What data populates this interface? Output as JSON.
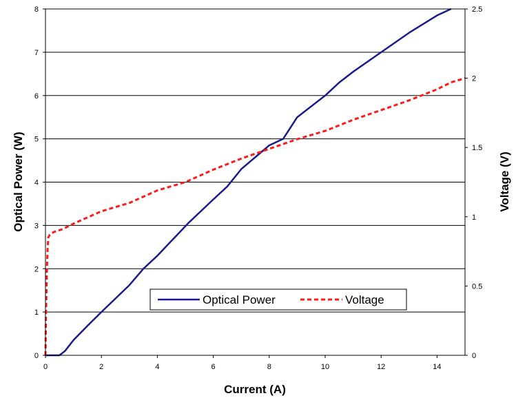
{
  "chart_data": {
    "type": "line",
    "title": "",
    "xlabel": "Current (A)",
    "ylabel": "Optical Power (W)",
    "y2label": "Voltage (V)",
    "xlim": [
      0,
      15
    ],
    "ylim": [
      0,
      8
    ],
    "y2lim": [
      0,
      2.5
    ],
    "x_ticks": [
      "0",
      "2",
      "4",
      "6",
      "8",
      "10",
      "12",
      "14"
    ],
    "y_ticks": [
      "0",
      "1",
      "2",
      "3",
      "4",
      "5",
      "6",
      "7",
      "8"
    ],
    "y2_ticks": [
      "0",
      "0.5",
      "1",
      "1.5",
      "2",
      "2.5"
    ],
    "grid": "horizontal",
    "legend": {
      "position": "lower-right",
      "entries": [
        "Optical Power",
        "Voltage"
      ]
    },
    "series": [
      {
        "name": "Optical Power",
        "axis": "left",
        "color": "#1a1a8c",
        "style": "solid",
        "x": [
          0,
          0.5,
          0.7,
          1.0,
          1.5,
          2.0,
          3.0,
          3.5,
          4.0,
          5.0,
          5.1,
          6.0,
          6.5,
          7.0,
          8.0,
          8.5,
          9.0,
          10.0,
          10.5,
          11.0,
          12.0,
          13.0,
          14.0,
          14.5
        ],
        "y": [
          0,
          0,
          0.1,
          0.35,
          0.68,
          1.0,
          1.62,
          2.0,
          2.3,
          2.98,
          3.05,
          3.6,
          3.9,
          4.3,
          4.85,
          5.0,
          5.5,
          6.0,
          6.3,
          6.55,
          7.0,
          7.45,
          7.85,
          8.0
        ]
      },
      {
        "name": "Voltage",
        "axis": "right",
        "color": "#ff1a1a",
        "style": "dashed",
        "x": [
          0,
          0.02,
          0.05,
          0.08,
          0.1,
          0.15,
          0.3,
          0.6,
          1.0,
          2.0,
          3.0,
          4.0,
          5.0,
          6.0,
          7.0,
          8.0,
          9.0,
          10.0,
          11.0,
          12.0,
          13.0,
          14.0,
          14.5,
          15.0
        ],
        "y": [
          0,
          0.3,
          0.6,
          0.78,
          0.85,
          0.87,
          0.89,
          0.91,
          0.95,
          1.04,
          1.1,
          1.19,
          1.25,
          1.34,
          1.42,
          1.49,
          1.56,
          1.62,
          1.7,
          1.77,
          1.84,
          1.92,
          1.97,
          2.0
        ]
      }
    ]
  }
}
